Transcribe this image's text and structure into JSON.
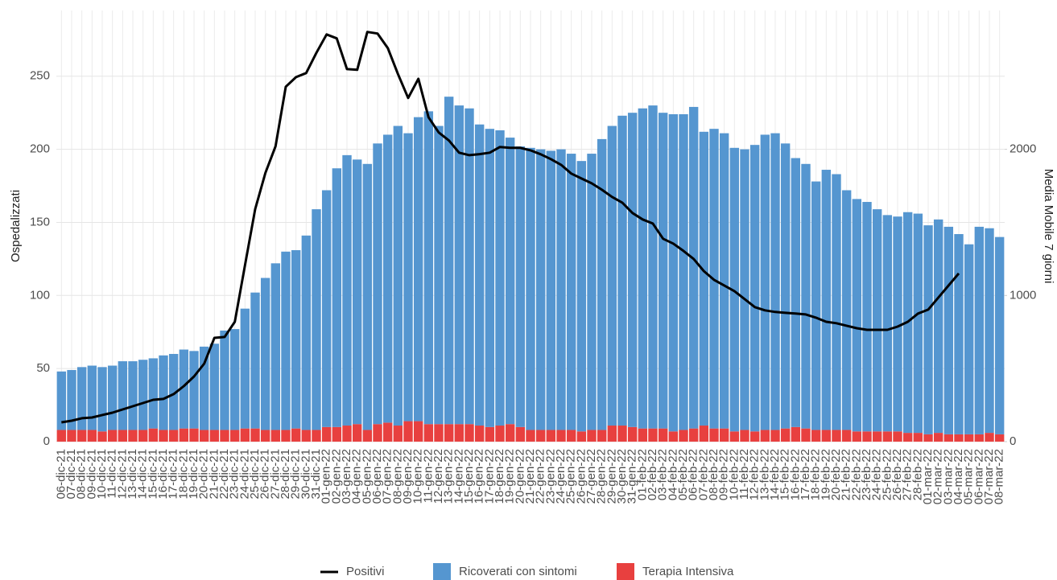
{
  "chart_data": {
    "type": "bar",
    "stacked": true,
    "grid": true,
    "y_label": "Ospedalizzati",
    "y2_label": "Media Mobile 7 giorni",
    "categories": [
      "06-dic-21",
      "07-dic-21",
      "08-dic-21",
      "09-dic-21",
      "10-dic-21",
      "11-dic-21",
      "12-dic-21",
      "13-dic-21",
      "14-dic-21",
      "15-dic-21",
      "16-dic-21",
      "17-dic-21",
      "18-dic-21",
      "19-dic-21",
      "20-dic-21",
      "21-dic-21",
      "22-dic-21",
      "23-dic-21",
      "24-dic-21",
      "25-dic-21",
      "26-dic-21",
      "27-dic-21",
      "28-dic-21",
      "29-dic-21",
      "30-dic-21",
      "31-dic-21",
      "01-gen-22",
      "02-gen-22",
      "03-gen-22",
      "04-gen-22",
      "05-gen-22",
      "06-gen-22",
      "07-gen-22",
      "08-gen-22",
      "09-gen-22",
      "10-gen-22",
      "11-gen-22",
      "12-gen-22",
      "13-gen-22",
      "14-gen-22",
      "15-gen-22",
      "16-gen-22",
      "17-gen-22",
      "18-gen-22",
      "19-gen-22",
      "20-gen-22",
      "21-gen-22",
      "22-gen-22",
      "23-gen-22",
      "24-gen-22",
      "25-gen-22",
      "26-gen-22",
      "27-gen-22",
      "28-gen-22",
      "29-gen-22",
      "30-gen-22",
      "31-gen-22",
      "01-feb-22",
      "02-feb-22",
      "03-feb-22",
      "04-feb-22",
      "05-feb-22",
      "06-feb-22",
      "07-feb-22",
      "08-feb-22",
      "09-feb-22",
      "10-feb-22",
      "11-feb-22",
      "12-feb-22",
      "13-feb-22",
      "14-feb-22",
      "15-feb-22",
      "16-feb-22",
      "17-feb-22",
      "18-feb-22",
      "19-feb-22",
      "20-feb-22",
      "21-feb-22",
      "22-feb-22",
      "23-feb-22",
      "24-feb-22",
      "25-feb-22",
      "26-feb-22",
      "27-feb-22",
      "28-feb-22",
      "01-mar-22",
      "02-mar-22",
      "03-mar-22",
      "04-mar-22",
      "05-mar-22",
      "06-mar-22",
      "07-mar-22",
      "08-mar-22"
    ],
    "series": [
      {
        "name": "Positivi",
        "type": "line",
        "axis": "y2",
        "color": "#000000",
        "values": [
          132,
          143,
          160,
          165,
          182,
          198,
          220,
          242,
          264,
          286,
          292,
          325,
          380,
          446,
          534,
          710,
          716,
          820,
          1206,
          1591,
          1839,
          2021,
          2428,
          2494,
          2522,
          2660,
          2786,
          2759,
          2549,
          2544,
          2803,
          2792,
          2693,
          2516,
          2351,
          2483,
          2219,
          2115,
          2060,
          1977,
          1960,
          1967,
          1977,
          2016,
          2010,
          2010,
          1993,
          1966,
          1933,
          1894,
          1834,
          1800,
          1767,
          1723,
          1674,
          1635,
          1564,
          1520,
          1492,
          1388,
          1355,
          1305,
          1250,
          1167,
          1107,
          1068,
          1030,
          975,
          920,
          898,
          887,
          881,
          876,
          870,
          848,
          820,
          810,
          793,
          776,
          765,
          765,
          765,
          787,
          820,
          876,
          903,
          986,
          1068,
          1151,
          null,
          null,
          null,
          null
        ]
      },
      {
        "name": "Ricoverati con sintomi",
        "type": "bar",
        "color": "#5596d0",
        "values": [
          40,
          41,
          43,
          44,
          44,
          44,
          47,
          47,
          48,
          48,
          51,
          52,
          54,
          53,
          57,
          59,
          68,
          69,
          82,
          93,
          104,
          114,
          122,
          122,
          133,
          151,
          162,
          177,
          185,
          181,
          182,
          192,
          197,
          205,
          197,
          208,
          214,
          204,
          224,
          218,
          216,
          206,
          204,
          202,
          196,
          192,
          193,
          192,
          191,
          192,
          189,
          185,
          189,
          199,
          205,
          212,
          215,
          219,
          221,
          216,
          217,
          216,
          220,
          201,
          205,
          202,
          194,
          192,
          196,
          202,
          203,
          195,
          184,
          181,
          170,
          178,
          175,
          164,
          159,
          157,
          152,
          148,
          147,
          151,
          150,
          143,
          146,
          142,
          137,
          130,
          142,
          140,
          135
        ]
      },
      {
        "name": "Terapia Intensiva",
        "type": "bar",
        "color": "#e8403f",
        "values": [
          8,
          8,
          8,
          8,
          7,
          8,
          8,
          8,
          8,
          9,
          8,
          8,
          9,
          9,
          8,
          8,
          8,
          8,
          9,
          9,
          8,
          8,
          8,
          9,
          8,
          8,
          10,
          10,
          11,
          12,
          8,
          12,
          13,
          11,
          14,
          14,
          12,
          12,
          12,
          12,
          12,
          11,
          10,
          11,
          12,
          10,
          8,
          8,
          8,
          8,
          8,
          7,
          8,
          8,
          11,
          11,
          10,
          9,
          9,
          9,
          7,
          8,
          9,
          11,
          9,
          9,
          7,
          8,
          7,
          8,
          8,
          9,
          10,
          9,
          8,
          8,
          8,
          8,
          7,
          7,
          7,
          7,
          7,
          6,
          6,
          5,
          6,
          5,
          5,
          5,
          5,
          6,
          5
        ]
      }
    ],
    "ylim": [
      0,
      295
    ],
    "yticks": [
      0,
      50,
      100,
      150,
      200,
      250
    ],
    "y2lim": [
      0,
      2950
    ],
    "y2ticks": [
      0,
      1000,
      2000
    ]
  }
}
